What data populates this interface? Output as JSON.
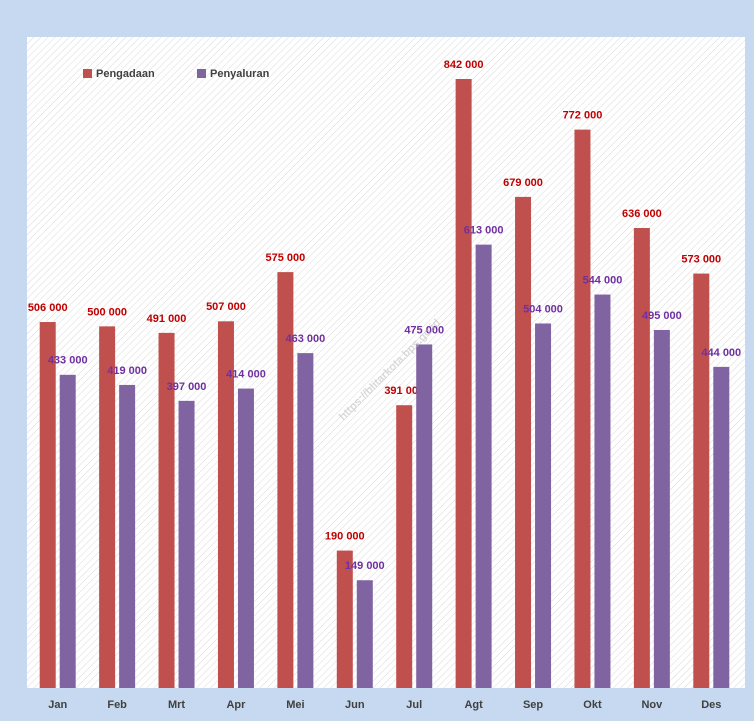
{
  "chart_data": {
    "type": "bar",
    "categories": [
      "Jan",
      "Feb",
      "Mrt",
      "Apr",
      "Mei",
      "Jun",
      "Jul",
      "Agt",
      "Sep",
      "Okt",
      "Nov",
      "Des"
    ],
    "series": [
      {
        "name": "Pengadaan",
        "color": "#c0504d",
        "label_color": "#c00000",
        "values": [
          506000,
          500000,
          491000,
          507000,
          575000,
          190000,
          391000,
          842000,
          679000,
          772000,
          636000,
          573000
        ],
        "value_labels": [
          "506 000",
          "500 000",
          "491 000",
          "507 000",
          "575 000",
          "190 000",
          "391 000",
          "842 000",
          "679 000",
          "772 000",
          "636 000",
          "573 000"
        ]
      },
      {
        "name": "Penyaluran",
        "color": "#8064a2",
        "label_color": "#7030a0",
        "values": [
          433000,
          419000,
          397000,
          414000,
          463000,
          149000,
          475000,
          613000,
          504000,
          544000,
          495000,
          444000
        ],
        "value_labels": [
          "433 000",
          "419 000",
          "397 000",
          "414 000",
          "463 000",
          "149 000",
          "475 000",
          "613 000",
          "504 000",
          "544 000",
          "495 000",
          "444 000"
        ]
      }
    ],
    "legend": "top-left",
    "watermark": "https://blitarkota.bps.go.id"
  }
}
